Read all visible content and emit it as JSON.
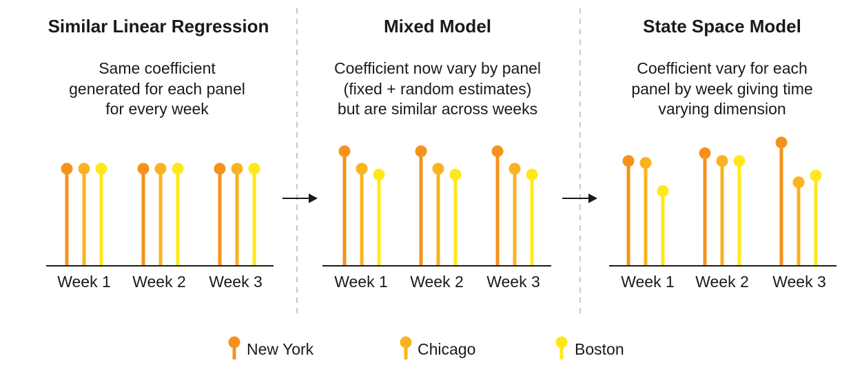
{
  "colors": {
    "new_york": "#F5921C",
    "chicago": "#FBB220",
    "boston": "#FFE81A",
    "axis": "#1a1a1a",
    "divider": "#c8c8c8",
    "text": "#1a1a1a"
  },
  "panels": [
    {
      "title": "Similar Linear Regression",
      "description": [
        "Same coefficient",
        "generated for each panel",
        "for every week"
      ],
      "weeks": [
        "Week 1",
        "Week 2",
        "Week 3"
      ],
      "chart_data": {
        "type": "lollipop",
        "categories": [
          "Week 1",
          "Week 2",
          "Week 3"
        ],
        "series": [
          {
            "name": "New York",
            "values": [
              1.0,
              1.0,
              1.0
            ]
          },
          {
            "name": "Chicago",
            "values": [
              1.0,
              1.0,
              1.0
            ]
          },
          {
            "name": "Boston",
            "values": [
              1.0,
              1.0,
              1.0
            ]
          }
        ]
      }
    },
    {
      "title": "Mixed Model",
      "description": [
        "Coefficient now vary by panel",
        "(fixed + random estimates)",
        "but are similar across weeks"
      ],
      "weeks": [
        "Week 1",
        "Week 2",
        "Week 3"
      ],
      "chart_data": {
        "type": "lollipop",
        "categories": [
          "Week 1",
          "Week 2",
          "Week 3"
        ],
        "series": [
          {
            "name": "New York",
            "values": [
              1.18,
              1.18,
              1.18
            ]
          },
          {
            "name": "Chicago",
            "values": [
              1.0,
              1.0,
              1.0
            ]
          },
          {
            "name": "Boston",
            "values": [
              0.94,
              0.94,
              0.94
            ]
          }
        ]
      }
    },
    {
      "title": "State Space Model",
      "description": [
        "Coefficient vary for each",
        "panel by week giving time",
        "varying dimension"
      ],
      "weeks": [
        "Week 1",
        "Week 2",
        "Week 3"
      ],
      "chart_data": {
        "type": "lollipop",
        "categories": [
          "Week 1",
          "Week 2",
          "Week 3"
        ],
        "series": [
          {
            "name": "New York",
            "values": [
              1.08,
              1.16,
              1.27
            ]
          },
          {
            "name": "Chicago",
            "values": [
              1.06,
              1.08,
              0.86
            ]
          },
          {
            "name": "Boston",
            "values": [
              0.77,
              1.08,
              0.93
            ]
          }
        ]
      }
    }
  ],
  "legend": [
    {
      "label": "New York",
      "color": "#F5921C"
    },
    {
      "label": "Chicago",
      "color": "#FBB220"
    },
    {
      "label": "Boston",
      "color": "#FFE81A"
    }
  ]
}
